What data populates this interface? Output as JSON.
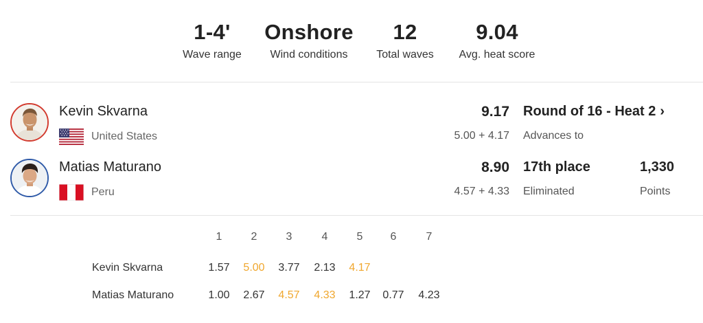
{
  "stats": [
    {
      "value": "1-4'",
      "label": "Wave range"
    },
    {
      "value": "Onshore",
      "label": "Wind conditions"
    },
    {
      "value": "12",
      "label": "Total waves"
    },
    {
      "value": "9.04",
      "label": "Avg. heat score"
    }
  ],
  "athletes": [
    {
      "name": "Kevin Skvarna",
      "country": "United States",
      "flag": "us-flag-icon",
      "total": "9.17",
      "breakdown": "5.00 + 4.17",
      "result": "Round of 16 - Heat 2",
      "result_icon": "chevron-right-icon",
      "result_sub": "Advances to",
      "ring_color": "#d23a2e"
    },
    {
      "name": "Matias Maturano",
      "country": "Peru",
      "flag": "peru-flag-icon",
      "total": "8.90",
      "breakdown": "4.57 + 4.33",
      "result": "17th place",
      "result_sub": "Eliminated",
      "points": "1,330",
      "points_label": "Points",
      "ring_color": "#2f5aa8"
    }
  ],
  "wave_table": {
    "headers": [
      "1",
      "2",
      "3",
      "4",
      "5",
      "6",
      "7"
    ],
    "rows": [
      {
        "name": "Kevin Skvarna",
        "scores": [
          "1.57",
          "5.00",
          "3.77",
          "2.13",
          "4.17"
        ],
        "counted": [
          1,
          4
        ]
      },
      {
        "name": "Matias Maturano",
        "scores": [
          "1.00",
          "2.67",
          "4.57",
          "4.33",
          "1.27",
          "0.77",
          "4.23"
        ],
        "counted": [
          2,
          3
        ]
      }
    ],
    "counted_color": "#f0a72e"
  }
}
